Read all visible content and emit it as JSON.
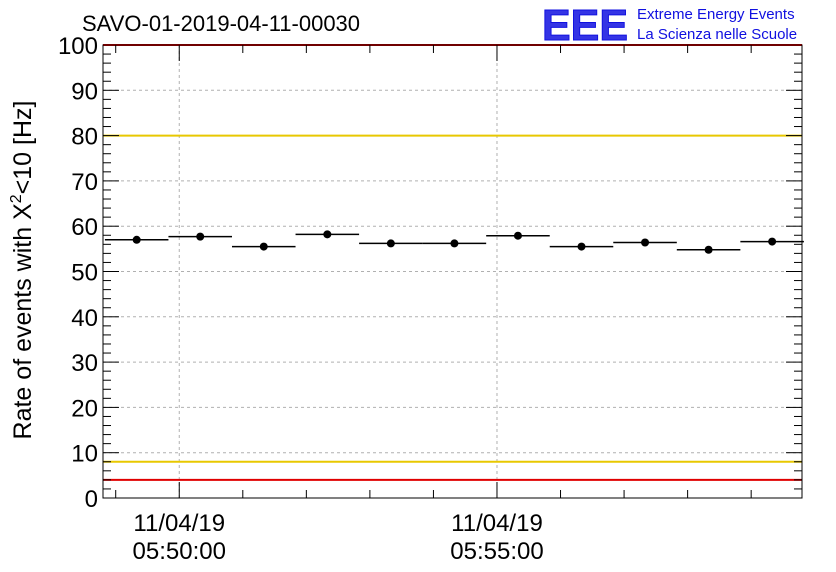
{
  "logo": {
    "mark": "EEE",
    "line1": "Extreme Energy Events",
    "line2": "La Scienza nelle Scuole",
    "color": "#1010e0"
  },
  "chart_data": {
    "type": "scatter",
    "title": "SAVO-01-2019-04-11-00030",
    "xlabel": "",
    "ylabel": "Rate of events with X²<10 [Hz]",
    "ylabel_parts": {
      "base": "Rate of events with X",
      "sup": "2",
      "tail": "<10 [Hz]"
    },
    "ylim": [
      0,
      100
    ],
    "yticks": [
      0,
      10,
      20,
      30,
      40,
      50,
      60,
      70,
      80,
      90,
      100
    ],
    "xlim_minutes": [
      -1.2,
      9.8
    ],
    "x_ticks": [
      {
        "minute": 0,
        "date": "11/04/19",
        "time": "05:50:00"
      },
      {
        "minute": 5,
        "date": "11/04/19",
        "time": "05:55:00"
      }
    ],
    "minor_tick_minutes": [
      -1,
      1,
      2,
      3,
      4,
      6,
      7,
      8,
      9
    ],
    "grid": true,
    "series": [
      {
        "points": [
          {
            "x": -0.67,
            "xerr": 0.5,
            "y": 57.0
          },
          {
            "x": 0.33,
            "xerr": 0.5,
            "y": 57.7
          },
          {
            "x": 1.33,
            "xerr": 0.5,
            "y": 55.5
          },
          {
            "x": 2.33,
            "xerr": 0.5,
            "y": 58.2
          },
          {
            "x": 3.33,
            "xerr": 0.5,
            "y": 56.2
          },
          {
            "x": 4.33,
            "xerr": 0.5,
            "y": 56.2
          },
          {
            "x": 5.33,
            "xerr": 0.5,
            "y": 57.9
          },
          {
            "x": 6.33,
            "xerr": 0.5,
            "y": 55.5
          },
          {
            "x": 7.33,
            "xerr": 0.5,
            "y": 56.4
          },
          {
            "x": 8.33,
            "xerr": 0.5,
            "y": 54.8
          },
          {
            "x": 9.33,
            "xerr": 0.5,
            "y": 56.6
          }
        ]
      }
    ],
    "reference_lines": [
      {
        "y": 100,
        "color": "#e00000"
      },
      {
        "y": 80,
        "color": "#e8c800"
      },
      {
        "y": 8,
        "color": "#e8c800"
      },
      {
        "y": 4,
        "color": "#e00000"
      }
    ]
  }
}
